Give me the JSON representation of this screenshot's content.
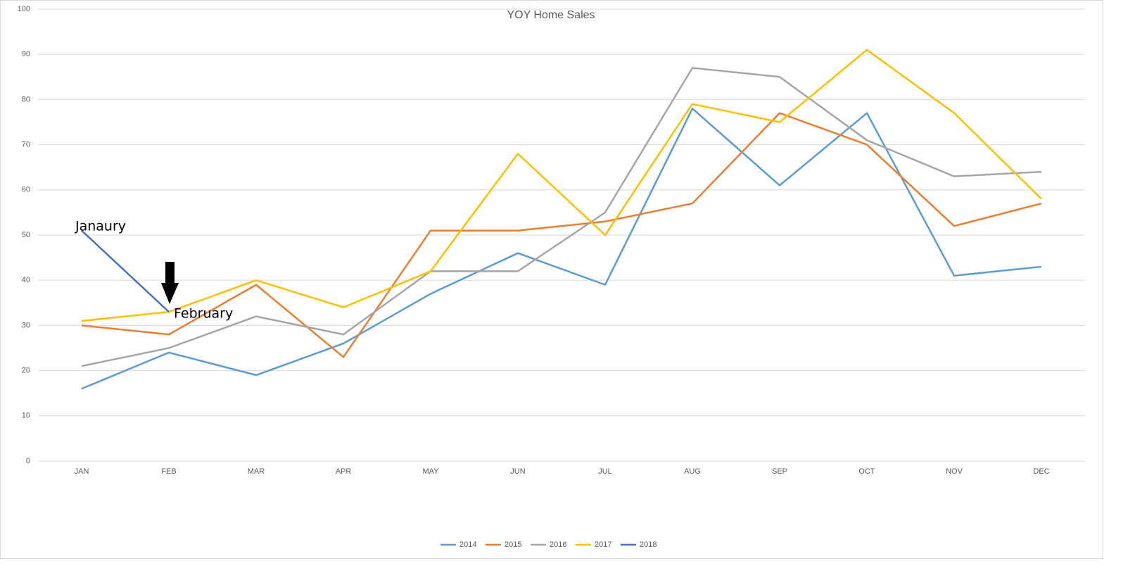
{
  "chart_data": {
    "type": "line",
    "title": "YOY Home Sales",
    "categories": [
      "JAN",
      "FEB",
      "MAR",
      "APR",
      "MAY",
      "JUN",
      "JUL",
      "AUG",
      "SEP",
      "OCT",
      "NOV",
      "DEC"
    ],
    "series": [
      {
        "name": "2014",
        "color": "#5b9bd5",
        "values": [
          16,
          24,
          19,
          26,
          37,
          46,
          39,
          78,
          61,
          77,
          41,
          43
        ]
      },
      {
        "name": "2015",
        "color": "#ed7d31",
        "values": [
          30,
          28,
          39,
          23,
          51,
          51,
          53,
          57,
          77,
          70,
          52,
          57
        ]
      },
      {
        "name": "2016",
        "color": "#a5a5a5",
        "values": [
          21,
          25,
          32,
          28,
          42,
          42,
          55,
          87,
          85,
          71,
          63,
          64
        ]
      },
      {
        "name": "2017",
        "color": "#ffc000",
        "values": [
          31,
          33,
          40,
          34,
          42,
          68,
          50,
          79,
          75,
          91,
          77,
          58
        ]
      },
      {
        "name": "2018",
        "color": "#4472c4",
        "values": [
          51,
          33,
          null,
          null,
          null,
          null,
          null,
          null,
          null,
          null,
          null,
          null
        ]
      }
    ],
    "ylim": [
      0,
      100
    ],
    "yticks": [
      0,
      10,
      20,
      30,
      40,
      50,
      60,
      70,
      80,
      90,
      100
    ],
    "grid": true,
    "legend": "bottom",
    "annotations": [
      "Janaury",
      "February"
    ]
  }
}
